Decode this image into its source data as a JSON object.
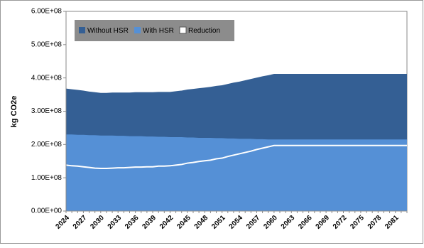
{
  "chart_data": {
    "type": "area",
    "y_label": "kg CO2e",
    "categories": [
      "2024",
      null,
      null,
      "2027",
      null,
      null,
      "2030",
      null,
      null,
      "2033",
      null,
      null,
      "2036",
      null,
      null,
      "2039",
      null,
      null,
      "2042",
      null,
      null,
      "2045",
      null,
      null,
      "2048",
      null,
      null,
      "2051",
      null,
      null,
      "2054",
      null,
      null,
      "2057",
      null,
      null,
      "2060",
      null,
      null,
      "2063",
      null,
      null,
      "2066",
      null,
      null,
      "2069",
      null,
      null,
      "2072",
      null,
      null,
      "2075",
      null,
      null,
      "2078",
      null,
      null,
      "2081",
      null,
      null
    ],
    "series": [
      {
        "name": "Without HSR",
        "color": "#345f94",
        "style": "area",
        "values": [
          368000000.0,
          366000000.0,
          364000000.0,
          362000000.0,
          359000000.0,
          357000000.0,
          355000000.0,
          355000000.0,
          356000000.0,
          356000000.0,
          356000000.0,
          356000000.0,
          357000000.0,
          357000000.0,
          357000000.0,
          357000000.0,
          358000000.0,
          358000000.0,
          358000000.0,
          360000000.0,
          362000000.0,
          365000000.0,
          367000000.0,
          369000000.0,
          371000000.0,
          373000000.0,
          376000000.0,
          378000000.0,
          382000000.0,
          386000000.0,
          389000000.0,
          393000000.0,
          397000000.0,
          401000000.0,
          405000000.0,
          408000000.0,
          412000000.0,
          412000000.0,
          412000000.0,
          412000000.0,
          412000000.0,
          412000000.0,
          412000000.0,
          412000000.0,
          412000000.0,
          412000000.0,
          412000000.0,
          412000000.0,
          412000000.0,
          412000000.0,
          412000000.0,
          412000000.0,
          412000000.0,
          412000000.0,
          412000000.0,
          412000000.0,
          412000000.0,
          412000000.0,
          412000000.0,
          412000000.0
        ]
      },
      {
        "name": "With HSR",
        "color": "#5590d6",
        "style": "area",
        "values": [
          230000000.0,
          230000000.0,
          229000000.0,
          229000000.0,
          228000000.0,
          228000000.0,
          227000000.0,
          227000000.0,
          227000000.0,
          226000000.0,
          226000000.0,
          225000000.0,
          225000000.0,
          225000000.0,
          224000000.0,
          224000000.0,
          223000000.0,
          223000000.0,
          222000000.0,
          222000000.0,
          222000000.0,
          221000000.0,
          221000000.0,
          220000000.0,
          220000000.0,
          220000000.0,
          219000000.0,
          219000000.0,
          218000000.0,
          218000000.0,
          217000000.0,
          217000000.0,
          217000000.0,
          216000000.0,
          216000000.0,
          215000000.0,
          215000000.0,
          215000000.0,
          215000000.0,
          215000000.0,
          215000000.0,
          215000000.0,
          215000000.0,
          215000000.0,
          215000000.0,
          215000000.0,
          215000000.0,
          215000000.0,
          215000000.0,
          215000000.0,
          215000000.0,
          215000000.0,
          215000000.0,
          215000000.0,
          215000000.0,
          215000000.0,
          215000000.0,
          215000000.0,
          215000000.0,
          215000000.0
        ]
      },
      {
        "name": "Reduction",
        "color": "#ffffff",
        "style": "line",
        "values": [
          138000000.0,
          136000000.0,
          135000000.0,
          133000000.0,
          131000000.0,
          129000000.0,
          128000000.0,
          128000000.0,
          129000000.0,
          130000000.0,
          130000000.0,
          131000000.0,
          132000000.0,
          132000000.0,
          133000000.0,
          133000000.0,
          135000000.0,
          135000000.0,
          136000000.0,
          138000000.0,
          140000000.0,
          144000000.0,
          146000000.0,
          149000000.0,
          151000000.0,
          153000000.0,
          157000000.0,
          159000000.0,
          164000000.0,
          168000000.0,
          172000000.0,
          176000000.0,
          180000000.0,
          185000000.0,
          189000000.0,
          193000000.0,
          197000000.0,
          197000000.0,
          197000000.0,
          197000000.0,
          197000000.0,
          197000000.0,
          197000000.0,
          197000000.0,
          197000000.0,
          197000000.0,
          197000000.0,
          197000000.0,
          197000000.0,
          197000000.0,
          197000000.0,
          197000000.0,
          197000000.0,
          197000000.0,
          197000000.0,
          197000000.0,
          197000000.0,
          197000000.0,
          197000000.0,
          197000000.0
        ]
      }
    ],
    "ylim": [
      0,
      600000000
    ],
    "yticks": [
      {
        "value": 0,
        "label": "0.00E+00"
      },
      {
        "value": 100000000,
        "label": "1.00E+08"
      },
      {
        "value": 200000000,
        "label": "2.00E+08"
      },
      {
        "value": 300000000,
        "label": "3.00E+08"
      },
      {
        "value": 400000000,
        "label": "4.00E+08"
      },
      {
        "value": 500000000,
        "label": "5.00E+08"
      },
      {
        "value": 600000000,
        "label": "6.00E+08"
      }
    ],
    "legend": "top-left"
  }
}
